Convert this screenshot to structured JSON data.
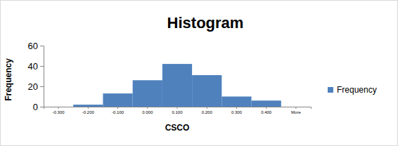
{
  "chart_data": {
    "type": "bar",
    "title": "Histogram",
    "x_label": "CSCO",
    "y_label": "Frequency",
    "categories": [
      "-0.300",
      "-0.200",
      "-0.100",
      "0.000",
      "0.100",
      "0.200",
      "0.300",
      "0.400",
      "More"
    ],
    "series": [
      {
        "name": "Frequency",
        "color": "#4f81bd",
        "values": [
          0,
          2,
          13,
          26,
          42,
          31,
          10,
          6,
          0
        ]
      }
    ],
    "ylim": [
      0,
      60
    ],
    "yticks": [
      0,
      20,
      40,
      60
    ],
    "legend": "right"
  }
}
